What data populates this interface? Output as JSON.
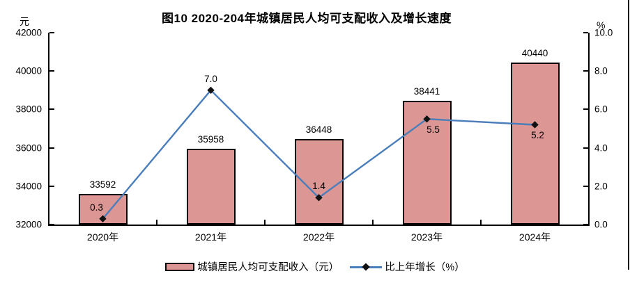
{
  "title": "图10 2020-204年城镇居民人均可支配收入及增长速度",
  "left_axis": {
    "unit": "元",
    "ticks": [
      "42000",
      "40000",
      "38000",
      "36000",
      "34000",
      "32000"
    ]
  },
  "right_axis": {
    "unit": "%",
    "ticks": [
      "10.0",
      "8.0",
      "6.0",
      "4.0",
      "2.0",
      "0.0"
    ]
  },
  "legend": {
    "bar_label": "城镇居民人均可支配收入（元）",
    "line_label": "比上年增长（%）"
  },
  "colors": {
    "bar_fill": "#DC9694",
    "bar_border": "#000000",
    "line": "#4A7EBB",
    "marker": "#111111"
  },
  "chart_data": {
    "type": "bar+line combo",
    "categories": [
      "2020年",
      "2021年",
      "2022年",
      "2023年",
      "2024年"
    ],
    "series": [
      {
        "name": "城镇居民人均可支配收入（元）",
        "type": "bar",
        "axis": "left",
        "values": [
          33592,
          35958,
          36448,
          38441,
          40440
        ]
      },
      {
        "name": "比上年增长（%）",
        "type": "line",
        "axis": "right",
        "values": [
          0.3,
          7.0,
          1.4,
          5.5,
          5.2
        ],
        "label_positions": [
          "above",
          "above",
          "above",
          "below",
          "below"
        ],
        "label_dx": [
          -9,
          0,
          0,
          9,
          4
        ]
      }
    ],
    "left_ylim": [
      32000,
      42000
    ],
    "right_ylim": [
      0,
      10
    ],
    "grid": false,
    "legend_position": "bottom"
  }
}
